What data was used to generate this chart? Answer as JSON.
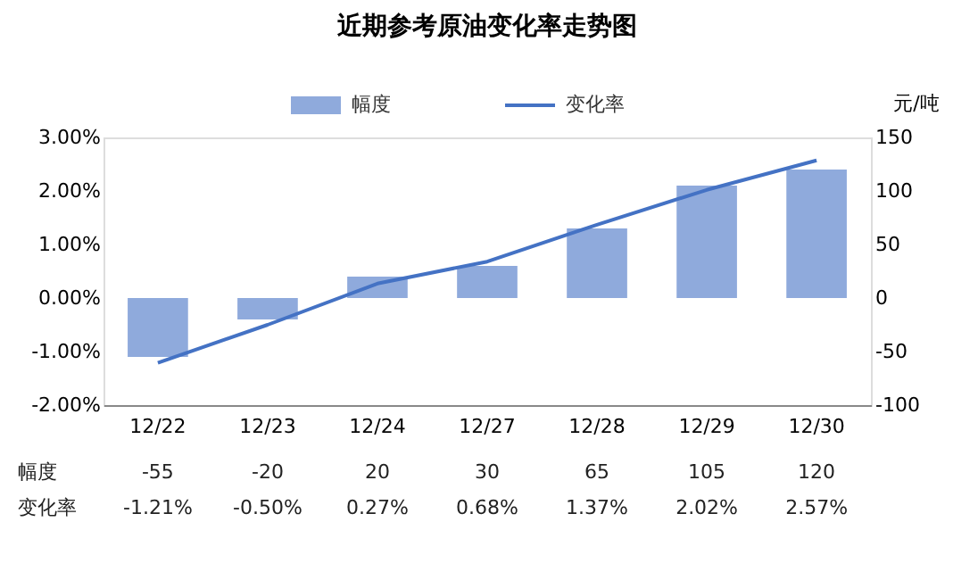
{
  "chart_data": {
    "type": "bar",
    "title": "近期参考原油变化率走势图",
    "y2label": "元/吨",
    "categories": [
      "12/22",
      "12/23",
      "12/24",
      "12/27",
      "12/28",
      "12/29",
      "12/30"
    ],
    "series": [
      {
        "name": "幅度",
        "axis": "y2",
        "color": "#8faadc",
        "values": [
          -55,
          -20,
          20,
          30,
          65,
          105,
          120
        ],
        "value_labels": [
          "-55",
          "-20",
          "20",
          "30",
          "65",
          "105",
          "120"
        ]
      },
      {
        "name": "变化率",
        "type": "line",
        "axis": "y",
        "color": "#4472c4",
        "values": [
          -1.21,
          -0.5,
          0.27,
          0.68,
          1.37,
          2.02,
          2.57
        ],
        "value_labels": [
          "-1.21%",
          "-0.50%",
          "0.27%",
          "0.68%",
          "1.37%",
          "2.02%",
          "2.57%"
        ]
      }
    ],
    "ylim": [
      -2,
      3
    ],
    "yticks": [
      {
        "value": -2,
        "label": "-2.00%"
      },
      {
        "value": -1,
        "label": "-1.00%"
      },
      {
        "value": 0,
        "label": "0.00%"
      },
      {
        "value": 1,
        "label": "1.00%"
      },
      {
        "value": 2,
        "label": "2.00%"
      },
      {
        "value": 3,
        "label": "3.00%"
      }
    ],
    "y2lim": [
      -100,
      150
    ],
    "y2ticks": [
      -100,
      -50,
      0,
      50,
      100,
      150
    ],
    "legend": "top",
    "grid": false,
    "marker": "none",
    "line_style": "solid"
  }
}
